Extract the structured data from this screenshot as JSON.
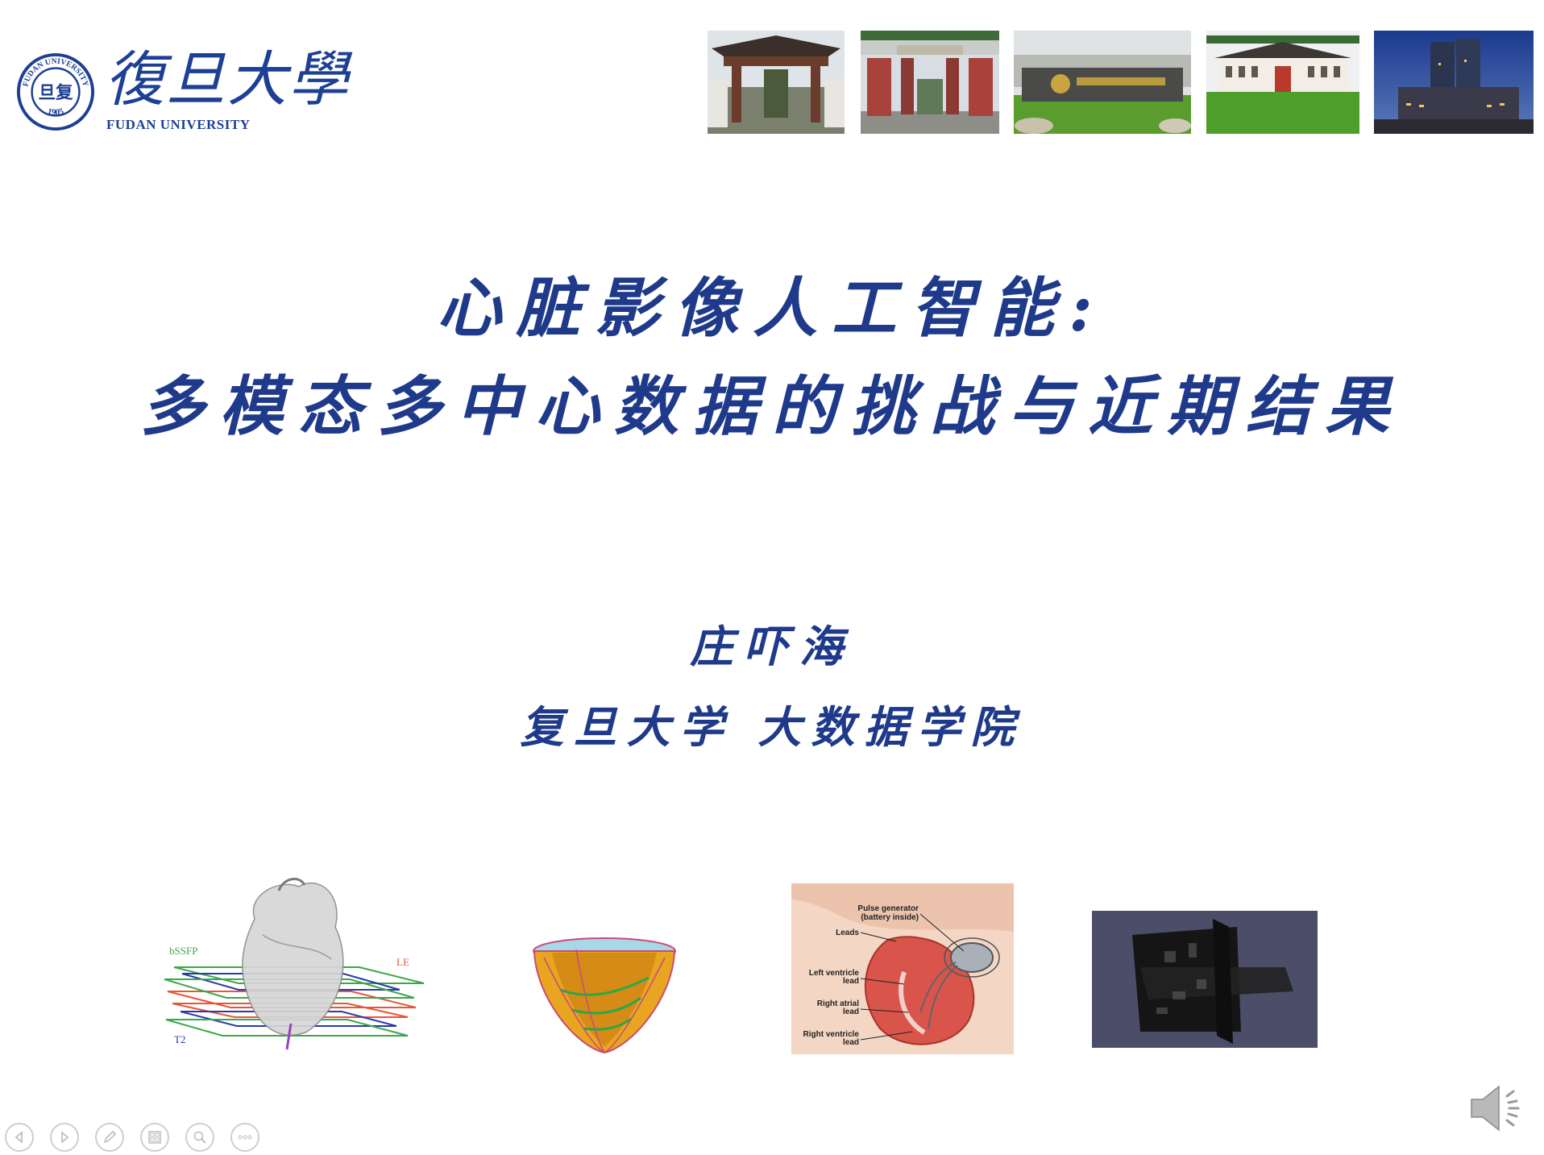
{
  "logo": {
    "seal_text": "FUDAN UNIVERSITY",
    "seal_year": "1905",
    "seal_center": "旦复",
    "chinese_name": "復旦大學",
    "english_name": "FUDAN UNIVERSITY"
  },
  "title": {
    "line1": "心脏影像人工智能:",
    "line2": "多模态多中心数据的挑战与近期结果"
  },
  "author": "庄吓海",
  "affiliation": "复旦大学 大数据学院",
  "figures": {
    "heart_labels": [
      "bSSFP",
      "LE",
      "T2"
    ],
    "pacemaker_labels": [
      "Pulse generator",
      "(battery inside)",
      "Leads",
      "Left ventricle",
      "lead",
      "Right atrial",
      "lead",
      "Right ventricle",
      "lead"
    ]
  },
  "colors": {
    "title_blue": "#1f3a8a",
    "logo_blue": "#1d3f95"
  },
  "nav": {
    "icons": [
      "previous-icon",
      "next-icon",
      "pen-icon",
      "slides-icon",
      "zoom-icon",
      "more-icon"
    ]
  }
}
